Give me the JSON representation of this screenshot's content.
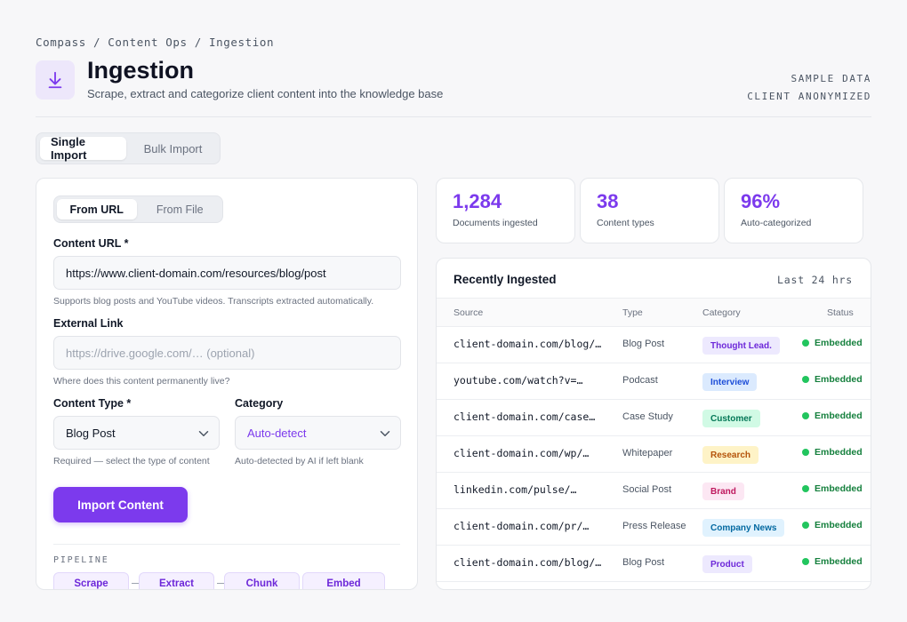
{
  "breadcrumb": "Compass / Content Ops / Ingestion",
  "page": {
    "icon": "download-icon",
    "title": "Ingestion",
    "subtitle": "Scrape, extract and categorize client content into the knowledge base",
    "meta_line1": "SAMPLE DATA",
    "meta_line2": "CLIENT ANONYMIZED"
  },
  "import_mode": {
    "tabs": [
      "Single Import",
      "Bulk Import"
    ],
    "active": "Single Import"
  },
  "form": {
    "source_tabs": [
      "From URL",
      "From File"
    ],
    "active_source": "From URL",
    "content_url": {
      "label": "Content URL *",
      "value": "https://www.client-domain.com/resources/blog/post",
      "help": "Supports blog posts and YouTube videos. Transcripts extracted automatically."
    },
    "external_link": {
      "label": "External Link",
      "placeholder": "https://drive.google.com/… (optional)",
      "help": "Where does this content permanently live?"
    },
    "content_type": {
      "label": "Content Type *",
      "value": "Blog Post",
      "help": "Required — select the type of content"
    },
    "category": {
      "label": "Category",
      "value": "Auto-detect",
      "help": "Auto-detected by AI if left blank"
    },
    "submit_label": "Import Content",
    "pipeline_label": "PIPELINE",
    "pipeline_stages": [
      "Scrape",
      "Extract",
      "Chunk",
      "Embed"
    ]
  },
  "stats": [
    {
      "value": "1,284",
      "label": "Documents ingested"
    },
    {
      "value": "38",
      "label": "Content types"
    },
    {
      "value": "96%",
      "label": "Auto-categorized"
    }
  ],
  "recent": {
    "title": "Recently Ingested",
    "range": "Last 24 hrs",
    "columns": [
      "Source",
      "Type",
      "Category",
      "Status"
    ],
    "rows": [
      {
        "source": "client-domain.com/blog/…",
        "type": "Blog Post",
        "category": "Thought Lead.",
        "status": "Embedded"
      },
      {
        "source": "youtube.com/watch?v=…",
        "type": "Podcast",
        "category": "Interview",
        "status": "Embedded"
      },
      {
        "source": "client-domain.com/case…",
        "type": "Case Study",
        "category": "Customer",
        "status": "Embedded"
      },
      {
        "source": "client-domain.com/wp/…",
        "type": "Whitepaper",
        "category": "Research",
        "status": "Embedded"
      },
      {
        "source": "linkedin.com/pulse/…",
        "type": "Social Post",
        "category": "Brand",
        "status": "Embedded"
      },
      {
        "source": "client-domain.com/pr/…",
        "type": "Press Release",
        "category": "Company News",
        "status": "Embedded"
      },
      {
        "source": "client-domain.com/blog/…",
        "type": "Blog Post",
        "category": "Product",
        "status": "Embedded"
      }
    ]
  },
  "colors": {
    "accent": "#7c3aed",
    "status_green": "#22c55e",
    "badge_thought_lead": "#ede9fe",
    "badge_interview": "#dbeafe",
    "badge_customer": "#d1fae5",
    "badge_research": "#fef3c7",
    "badge_brand": "#fce7f3",
    "badge_company_news": "#e0f2fe",
    "badge_product": "#ede9fe"
  }
}
